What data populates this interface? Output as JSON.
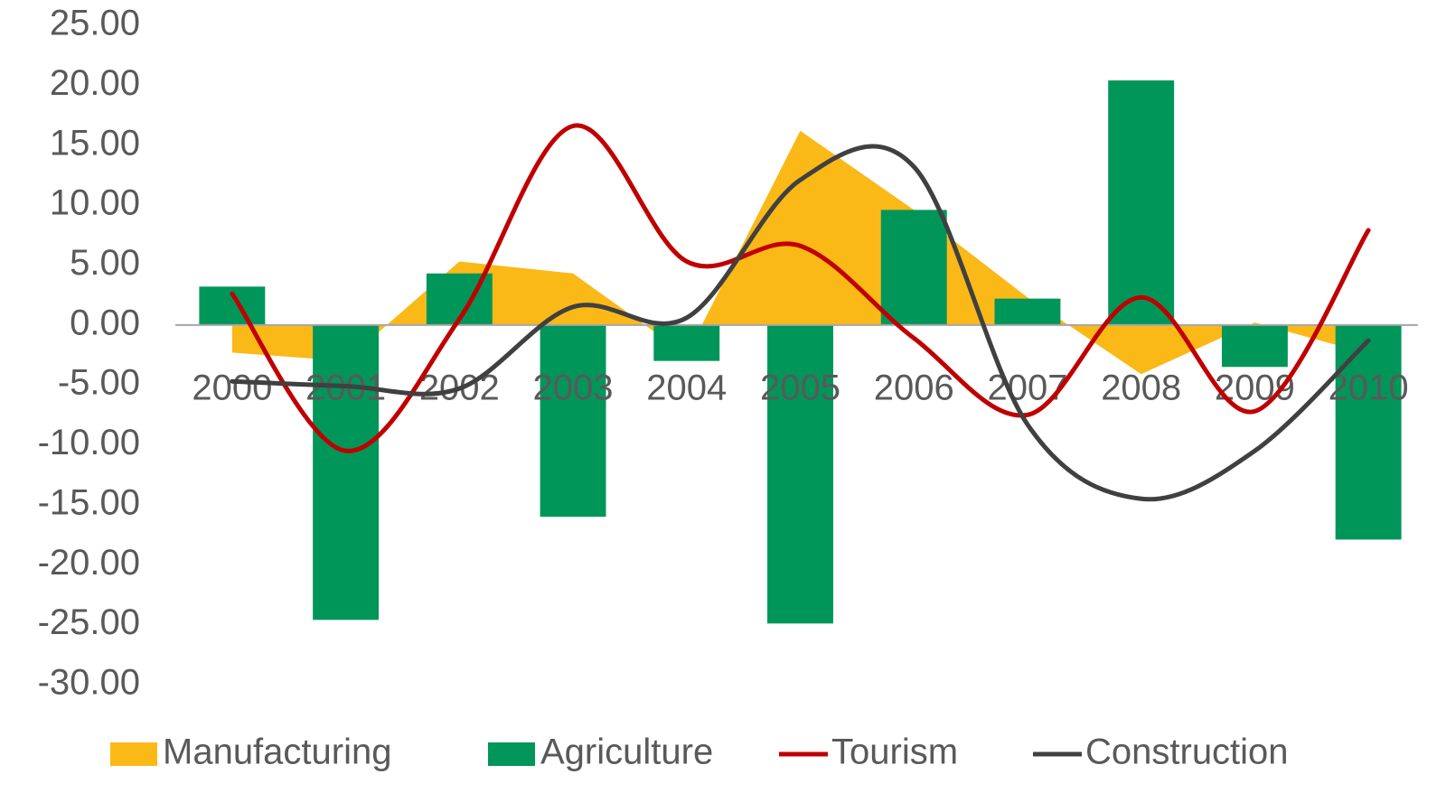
{
  "chart_data": {
    "type": "combo",
    "categories": [
      "2000",
      "2001",
      "2002",
      "2003",
      "2004",
      "2005",
      "2006",
      "2007",
      "2008",
      "2009",
      "2010"
    ],
    "series": [
      {
        "name": "Manufacturing",
        "type": "area",
        "color": "#fbb917",
        "values": [
          -2.3,
          -3.0,
          5.3,
          4.3,
          -2.5,
          16.2,
          9.6,
          2.3,
          -4.1,
          0.2,
          -2.4
        ]
      },
      {
        "name": "Agriculture",
        "type": "bar",
        "color": "#00965a",
        "values": [
          3.2,
          -24.6,
          4.3,
          -16.0,
          -3.0,
          -24.9,
          9.6,
          2.2,
          20.4,
          -3.5,
          -17.9
        ]
      },
      {
        "name": "Tourism",
        "type": "line",
        "color": "#c00000",
        "values": [
          2.6,
          -10.5,
          0.5,
          16.6,
          5.3,
          6.6,
          -1.1,
          -7.5,
          2.3,
          -7.2,
          7.9
        ]
      },
      {
        "name": "Construction",
        "type": "line",
        "color": "#404040",
        "values": [
          -4.7,
          -5.1,
          -5.3,
          1.5,
          0.6,
          12.1,
          13.2,
          -8.3,
          -14.5,
          -10.5,
          -1.3
        ]
      }
    ],
    "ylim": [
      -30,
      25
    ],
    "yticks": [
      {
        "value": 25,
        "label": "25.00"
      },
      {
        "value": 20,
        "label": "20.00"
      },
      {
        "value": 15,
        "label": "15.00"
      },
      {
        "value": 10,
        "label": "10.00"
      },
      {
        "value": 5,
        "label": "5.00"
      },
      {
        "value": 0,
        "label": "0.00"
      },
      {
        "value": -5,
        "label": "-5.00"
      },
      {
        "value": -10,
        "label": "-10.00"
      },
      {
        "value": -15,
        "label": "-15.00"
      },
      {
        "value": -20,
        "label": "-20.00"
      },
      {
        "value": -25,
        "label": "-25.00"
      },
      {
        "value": -30,
        "label": "-30.00"
      }
    ],
    "legend": "bottom"
  }
}
